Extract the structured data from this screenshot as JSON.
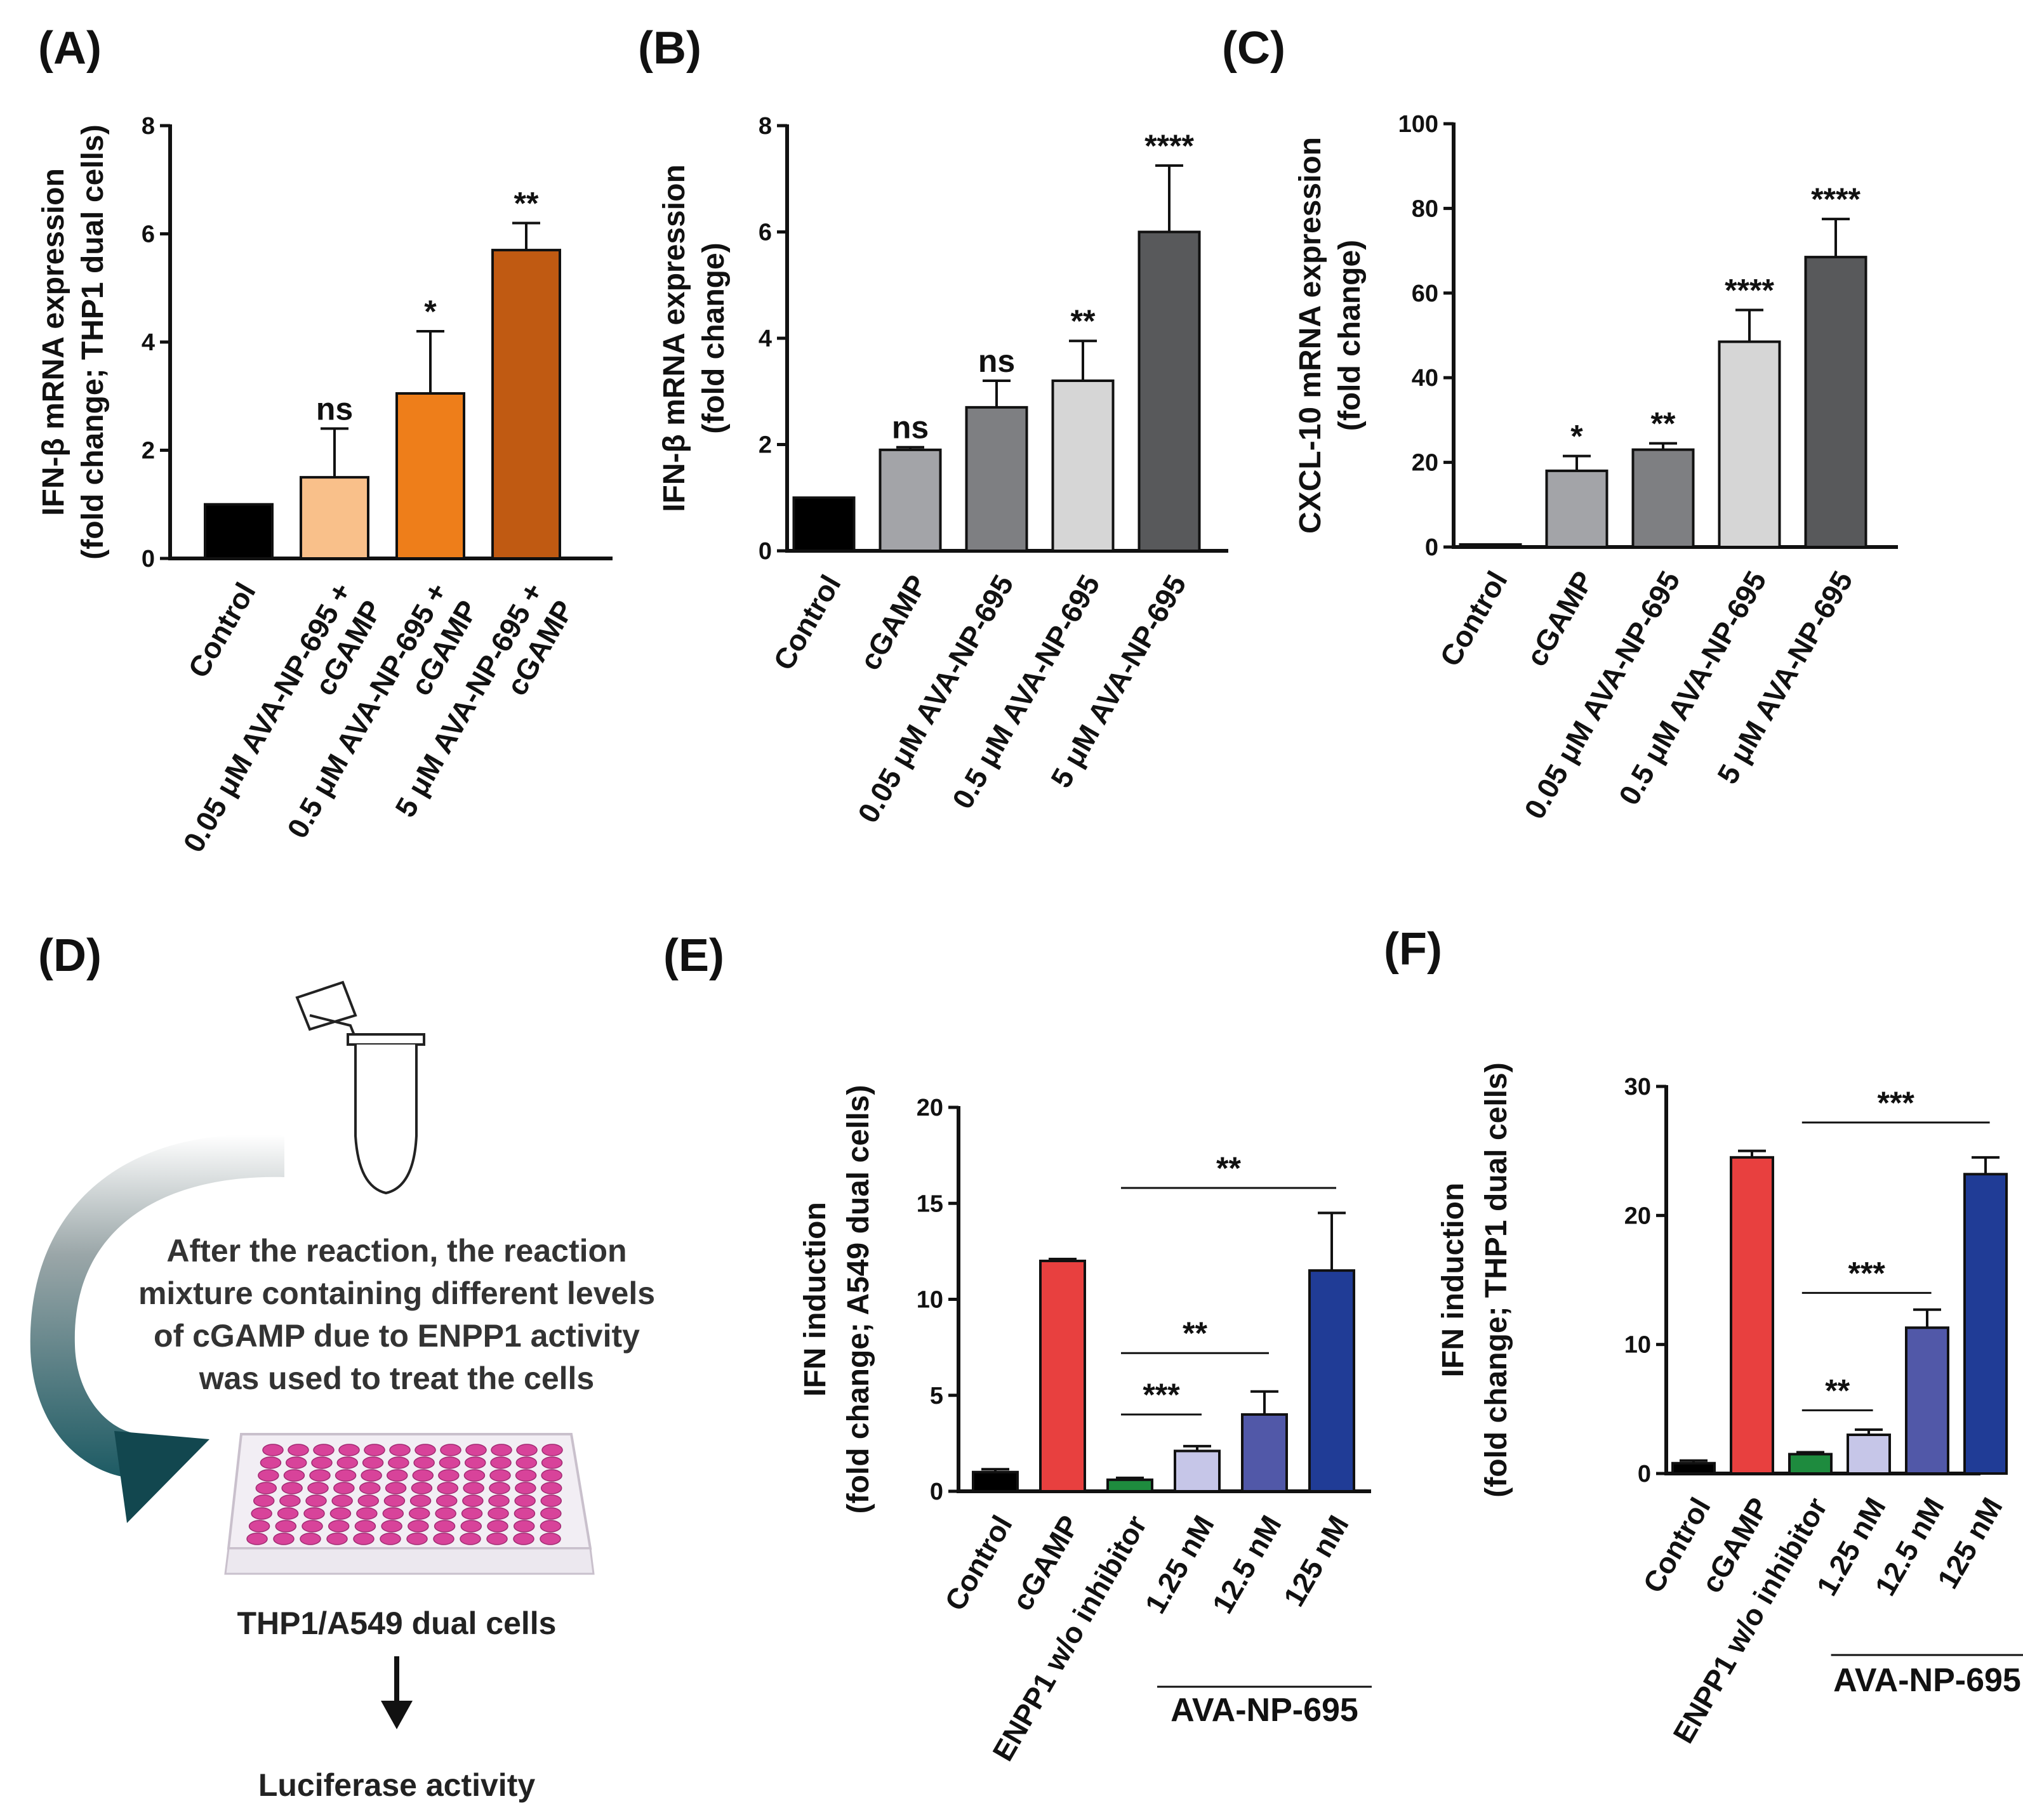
{
  "panels": {
    "A": "(A)",
    "B": "(B)",
    "C": "(C)",
    "D": "(D)",
    "E": "(E)",
    "F": "(F)"
  },
  "diagram": {
    "text_lines": [
      "After the reaction, the reaction",
      "mixture containing different levels",
      "of cGAMP due to ENPP1 activity",
      "was used to treat the cells"
    ],
    "cells_label": "THP1/A549 dual cells",
    "readout_label": "Luciferase activity"
  },
  "chart_data": [
    {
      "id": "A",
      "type": "bar",
      "ylabel_lines": [
        "IFN-β mRNA expression",
        "(fold change; THP1 dual cells)"
      ],
      "ylim": [
        0,
        8
      ],
      "yticks": [
        "0",
        "2",
        "4",
        "6",
        "8"
      ],
      "categories": [
        [
          "Control"
        ],
        [
          "0.05 μM AVA-NP-695 +",
          "cGAMP"
        ],
        [
          "0.5 μM AVA-NP-695 +",
          "cGAMP"
        ],
        [
          "5 μM AVA-NP-695 +",
          "cGAMP"
        ]
      ],
      "values": [
        1.0,
        1.5,
        3.05,
        5.7
      ],
      "errors": [
        0.0,
        0.9,
        1.15,
        0.5
      ],
      "colors": [
        "#000000",
        "#F9C08A",
        "#EE7E1A",
        "#C05A12"
      ],
      "significance": [
        "",
        "ns",
        "*",
        "**"
      ]
    },
    {
      "id": "B",
      "type": "bar",
      "ylabel_lines": [
        "IFN-β mRNA expression",
        "(fold change)"
      ],
      "ylim": [
        0,
        8
      ],
      "yticks": [
        "0",
        "2",
        "4",
        "6",
        "8"
      ],
      "categories": [
        [
          "Control"
        ],
        [
          "cGAMP"
        ],
        [
          "0.05 μM AVA-NP-695"
        ],
        [
          "0.5 μM AVA-NP-695"
        ],
        [
          "5 μM AVA-NP-695"
        ]
      ],
      "values": [
        1.0,
        1.9,
        2.7,
        3.2,
        6.0
      ],
      "errors": [
        0.0,
        0.05,
        0.5,
        0.75,
        1.25
      ],
      "colors": [
        "#000000",
        "#A3A4A8",
        "#7E7F82",
        "#D6D6D6",
        "#58595B"
      ],
      "significance": [
        "",
        "ns",
        "ns",
        "**",
        "****"
      ]
    },
    {
      "id": "C",
      "type": "bar",
      "ylabel_lines": [
        "CXCL-10 mRNA expression",
        "(fold change)"
      ],
      "ylim": [
        0,
        100
      ],
      "yticks": [
        "0",
        "20",
        "40",
        "60",
        "80",
        "100"
      ],
      "categories": [
        [
          "Control"
        ],
        [
          "cGAMP"
        ],
        [
          "0.05 μM AVA-NP-695"
        ],
        [
          "0.5 μM AVA-NP-695"
        ],
        [
          "5 μM AVA-NP-695"
        ]
      ],
      "values": [
        0.5,
        18,
        23,
        48.5,
        68.5
      ],
      "errors": [
        0.0,
        3.5,
        1.5,
        7.5,
        9.0
      ],
      "colors": [
        "#000000",
        "#A3A4A8",
        "#7E7F82",
        "#D6D6D6",
        "#58595B"
      ],
      "significance": [
        "",
        "*",
        "**",
        "****",
        "****"
      ]
    },
    {
      "id": "E",
      "type": "bar",
      "ylabel_lines": [
        "IFN induction",
        "(fold change; A549 dual cells)"
      ],
      "ylim": [
        0,
        20
      ],
      "yticks": [
        "0",
        "5",
        "10",
        "15",
        "20"
      ],
      "categories": [
        [
          "Control"
        ],
        [
          "cGAMP"
        ],
        [
          "ENPP1 w/o inhibitor"
        ],
        [
          "1.25 nM"
        ],
        [
          "12.5 nM"
        ],
        [
          "125 nM"
        ]
      ],
      "values": [
        1.0,
        12.0,
        0.6,
        2.1,
        4.0,
        11.5
      ],
      "errors": [
        0.15,
        0.1,
        0.1,
        0.25,
        1.2,
        3.0
      ],
      "colors": [
        "#000000",
        "#E8403F",
        "#1E8B3E",
        "#C6C6E8",
        "#5158A8",
        "#203C96"
      ],
      "group_label": "AVA-NP-695",
      "group_range": [
        3,
        5
      ],
      "brackets": [
        {
          "from": 2,
          "to": 3,
          "y": 4.0,
          "label": "***"
        },
        {
          "from": 2,
          "to": 4,
          "y": 7.2,
          "label": "**"
        },
        {
          "from": 2,
          "to": 5,
          "y": 15.8,
          "label": "**"
        }
      ]
    },
    {
      "id": "F",
      "type": "bar",
      "ylabel_lines": [
        "IFN induction",
        "(fold change; THP1 dual cells)"
      ],
      "ylim": [
        0,
        30
      ],
      "yticks": [
        "0",
        "10",
        "20",
        "30"
      ],
      "categories": [
        [
          "Control"
        ],
        [
          "cGAMP"
        ],
        [
          "ENPP1 w/o inhibitor"
        ],
        [
          "1.25 nM"
        ],
        [
          "12.5 nM"
        ],
        [
          "125 nM"
        ]
      ],
      "values": [
        0.8,
        24.5,
        1.5,
        3.0,
        11.3,
        23.2
      ],
      "errors": [
        0.2,
        0.5,
        0.15,
        0.4,
        1.4,
        1.3
      ],
      "colors": [
        "#000000",
        "#E8403F",
        "#1E8B3E",
        "#C6C6E8",
        "#5158A8",
        "#203C96"
      ],
      "group_label": "AVA-NP-695",
      "group_range": [
        3,
        5
      ],
      "brackets": [
        {
          "from": 2,
          "to": 3,
          "y": 4.9,
          "label": "**"
        },
        {
          "from": 2,
          "to": 4,
          "y": 14.0,
          "label": "***"
        },
        {
          "from": 2,
          "to": 5,
          "y": 27.2,
          "label": "***"
        }
      ]
    }
  ]
}
